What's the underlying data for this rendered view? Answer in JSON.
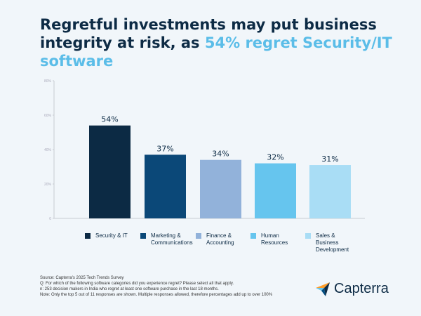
{
  "chart_data": {
    "type": "bar",
    "title": "Regretful investments may put business integrity at risk, as ",
    "title_highlight": "54% regret Security/IT software",
    "categories": [
      "Security & IT",
      "Marketing & Communications",
      "Finance & Accounting",
      "Human Resources",
      "Sales & Business Development"
    ],
    "values": [
      54,
      37,
      34,
      32,
      31
    ],
    "data_labels": [
      "54%",
      "37%",
      "34%",
      "32%",
      "31%"
    ],
    "colors": [
      "#0c2a44",
      "#0b4878",
      "#92b2da",
      "#66c5ee",
      "#a9ddf5"
    ],
    "ylim": [
      0,
      80
    ],
    "yticks": [
      "0",
      "20%",
      "40%",
      "60%",
      "80%"
    ],
    "ytick_values": [
      0,
      20,
      40,
      60,
      80
    ],
    "grid": false,
    "legend": "bottom"
  },
  "footnote": [
    "Source: Capterra's 2025 Tech Trends Survey",
    "Q: For which of the following software categories did you experience regret? Please select all that apply.",
    "n: 253 decision makers in India who regret at least one software purchase in the last 18 months.",
    "Note: Only the top 5 out of 11 responses are shown. Multiple responses allowed, therefore percentages add up to over 100%"
  ],
  "logo": {
    "text": "Capterra"
  }
}
